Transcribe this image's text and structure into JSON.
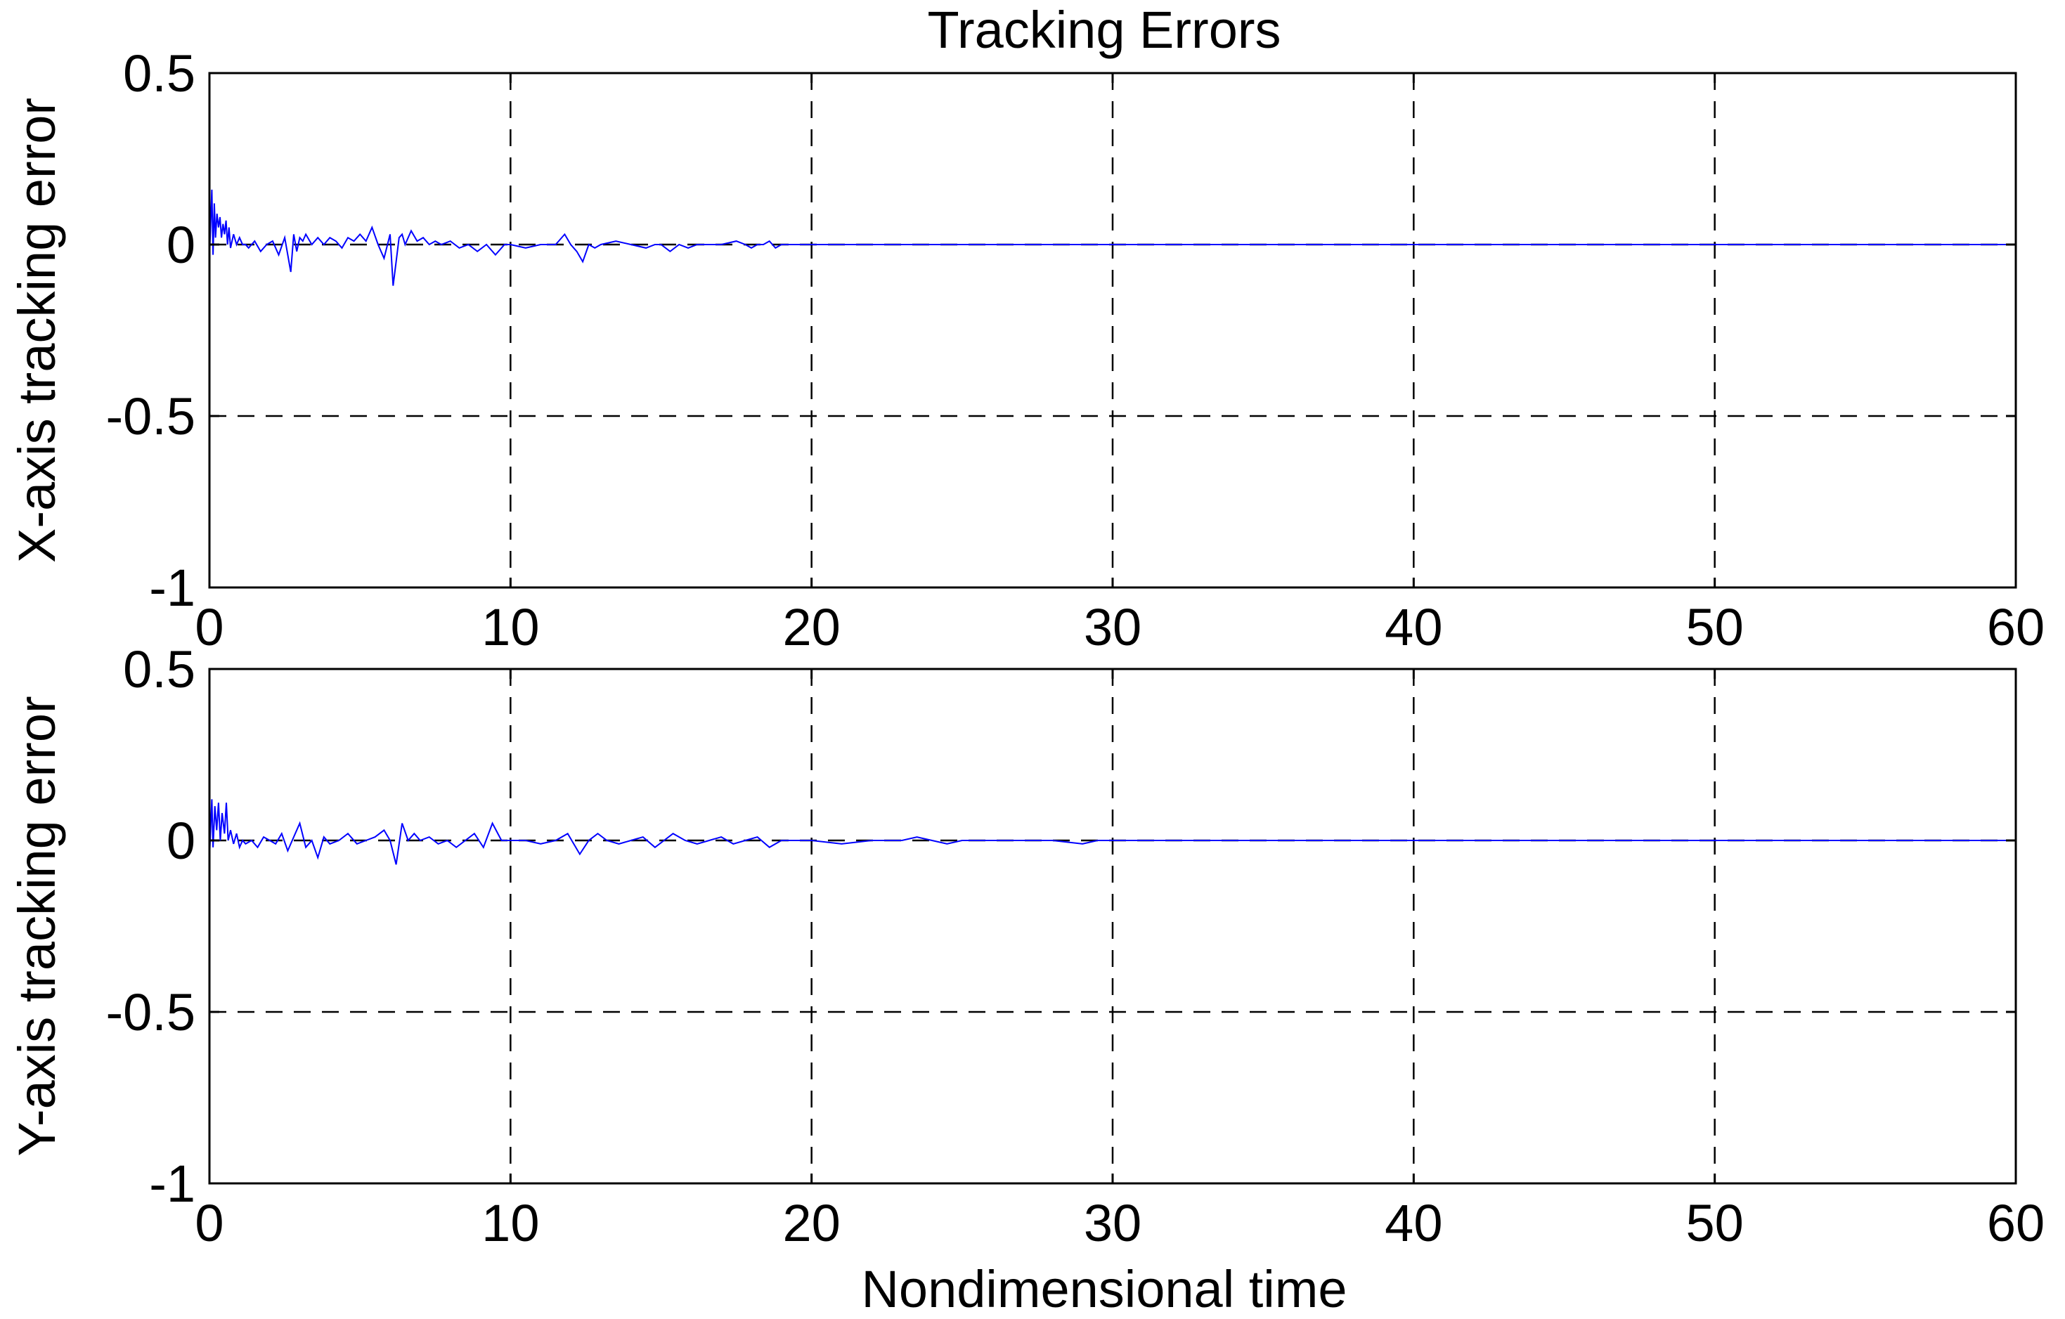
{
  "chart_data": {
    "title": "Tracking Errors",
    "xlabel": "Nondimensional time",
    "colors": {
      "series": "#0000ff",
      "grid": "#000000",
      "axes": "#000000"
    },
    "grid": true,
    "subplots": [
      {
        "type": "line",
        "ylabel": "X-axis tracking error",
        "xlim": [
          0,
          60
        ],
        "ylim": [
          -1,
          0.5
        ],
        "xticks": [
          0,
          10,
          20,
          30,
          40,
          50,
          60
        ],
        "yticks": [
          -1,
          -0.5,
          0,
          0.5
        ],
        "xtick_labels": [
          "0",
          "10",
          "20",
          "30",
          "40",
          "50",
          "60"
        ],
        "ytick_labels": [
          "-1",
          "-0.5",
          "0",
          "0.5"
        ],
        "series": [
          {
            "x": [
              0,
              0.08,
              0.12,
              0.16,
              0.2,
              0.25,
              0.3,
              0.35,
              0.4,
              0.45,
              0.5,
              0.55,
              0.6,
              0.65,
              0.7,
              0.8,
              0.9,
              1.0,
              1.1,
              1.2,
              1.3,
              1.5,
              1.7,
              1.9,
              2.1,
              2.3,
              2.5,
              2.7,
              2.8,
              2.9,
              3.0,
              3.1,
              3.2,
              3.4,
              3.6,
              3.8,
              4.0,
              4.2,
              4.4,
              4.6,
              4.8,
              5.0,
              5.2,
              5.4,
              5.6,
              5.8,
              6.0,
              6.1,
              6.2,
              6.3,
              6.4,
              6.5,
              6.7,
              6.9,
              7.1,
              7.3,
              7.5,
              7.7,
              8.0,
              8.3,
              8.6,
              8.9,
              9.2,
              9.5,
              9.8,
              10.0,
              10.5,
              11.0,
              11.5,
              11.8,
              12.0,
              12.2,
              12.4,
              12.6,
              12.8,
              13.0,
              13.5,
              14.0,
              14.5,
              14.8,
              15.0,
              15.3,
              15.6,
              15.9,
              16.2,
              16.5,
              17.0,
              17.5,
              17.8,
              18.0,
              18.2,
              18.4,
              18.6,
              18.8,
              19.0,
              19.2,
              20,
              25,
              30,
              40,
              50,
              60
            ],
            "y": [
              -0.04,
              0.16,
              -0.03,
              0.12,
              0.02,
              0.09,
              0.05,
              0.08,
              0.02,
              0.06,
              0.03,
              0.07,
              0.0,
              0.05,
              -0.01,
              0.03,
              0.0,
              0.02,
              0.0,
              0.0,
              -0.01,
              0.01,
              -0.02,
              0.0,
              0.01,
              -0.03,
              0.02,
              -0.08,
              0.03,
              -0.02,
              0.02,
              0.01,
              0.03,
              0.0,
              0.02,
              0.0,
              0.02,
              0.01,
              -0.01,
              0.02,
              0.01,
              0.03,
              0.01,
              0.05,
              0.0,
              -0.04,
              0.03,
              -0.12,
              -0.05,
              0.02,
              0.03,
              0.0,
              0.04,
              0.01,
              0.02,
              0.0,
              0.01,
              0.0,
              0.01,
              -0.01,
              0.0,
              -0.02,
              0.0,
              -0.03,
              0.0,
              0.0,
              -0.01,
              0.0,
              0.0,
              0.03,
              0.0,
              -0.02,
              -0.05,
              0.0,
              -0.01,
              0.0,
              0.01,
              0.0,
              -0.01,
              0.0,
              0.0,
              -0.02,
              0.0,
              -0.01,
              0.0,
              0.0,
              0.0,
              0.01,
              0.0,
              -0.01,
              0.0,
              0.0,
              0.01,
              -0.01,
              0.0,
              0.0,
              0.0,
              0.0,
              0.0,
              0.0,
              0.0,
              0.0
            ]
          }
        ]
      },
      {
        "type": "line",
        "ylabel": "Y-axis tracking error",
        "xlim": [
          0,
          60
        ],
        "ylim": [
          -1,
          0.5
        ],
        "xticks": [
          0,
          10,
          20,
          30,
          40,
          50,
          60
        ],
        "yticks": [
          -1,
          -0.5,
          0,
          0.5
        ],
        "xtick_labels": [
          "0",
          "10",
          "20",
          "30",
          "40",
          "50",
          "60"
        ],
        "ytick_labels": [
          "-1",
          "-0.5",
          "0",
          "0.5"
        ],
        "series": [
          {
            "x": [
              0,
              0.08,
              0.12,
              0.18,
              0.24,
              0.3,
              0.36,
              0.42,
              0.5,
              0.56,
              0.62,
              0.7,
              0.8,
              0.9,
              1.0,
              1.1,
              1.2,
              1.4,
              1.6,
              1.8,
              2.0,
              2.2,
              2.4,
              2.6,
              2.8,
              3.0,
              3.2,
              3.4,
              3.6,
              3.8,
              4.0,
              4.3,
              4.6,
              4.9,
              5.2,
              5.5,
              5.8,
              6.0,
              6.2,
              6.4,
              6.6,
              6.8,
              7.0,
              7.3,
              7.6,
              7.9,
              8.2,
              8.5,
              8.8,
              9.1,
              9.4,
              9.7,
              10.0,
              10.5,
              11.0,
              11.5,
              11.9,
              12.1,
              12.3,
              12.6,
              12.9,
              13.2,
              13.6,
              14.0,
              14.4,
              14.8,
              15.1,
              15.4,
              15.8,
              16.2,
              16.6,
              17.0,
              17.4,
              17.8,
              18.2,
              18.6,
              19.0,
              20.0,
              21.0,
              22.0,
              23.0,
              23.5,
              24.0,
              24.5,
              25.0,
              26.0,
              27.0,
              28.0,
              29.0,
              29.5,
              30.0,
              40,
              50,
              60
            ],
            "y": [
              -0.05,
              0.12,
              -0.02,
              0.1,
              0.03,
              0.11,
              0.0,
              0.08,
              0.02,
              0.11,
              0.0,
              0.03,
              -0.01,
              0.02,
              -0.02,
              0.0,
              -0.01,
              0.0,
              -0.02,
              0.01,
              0.0,
              -0.01,
              0.02,
              -0.03,
              0.01,
              0.05,
              -0.02,
              0.0,
              -0.05,
              0.01,
              -0.01,
              0.0,
              0.02,
              -0.01,
              0.0,
              0.01,
              0.03,
              0.0,
              -0.07,
              0.05,
              0.0,
              0.02,
              0.0,
              0.01,
              -0.01,
              0.0,
              -0.02,
              0.0,
              0.02,
              -0.02,
              0.05,
              0.0,
              0.0,
              0.0,
              -0.01,
              0.0,
              0.02,
              -0.01,
              -0.04,
              0.0,
              0.02,
              0.0,
              -0.01,
              0.0,
              0.01,
              -0.02,
              0.0,
              0.02,
              0.0,
              -0.01,
              0.0,
              0.01,
              -0.01,
              0.0,
              0.01,
              -0.02,
              0.0,
              0.0,
              -0.01,
              0.0,
              0.0,
              0.01,
              0.0,
              -0.01,
              0.0,
              0.0,
              0.0,
              0.0,
              -0.01,
              0.0,
              0.0,
              0.0,
              0.0,
              0.0
            ]
          }
        ]
      }
    ]
  }
}
